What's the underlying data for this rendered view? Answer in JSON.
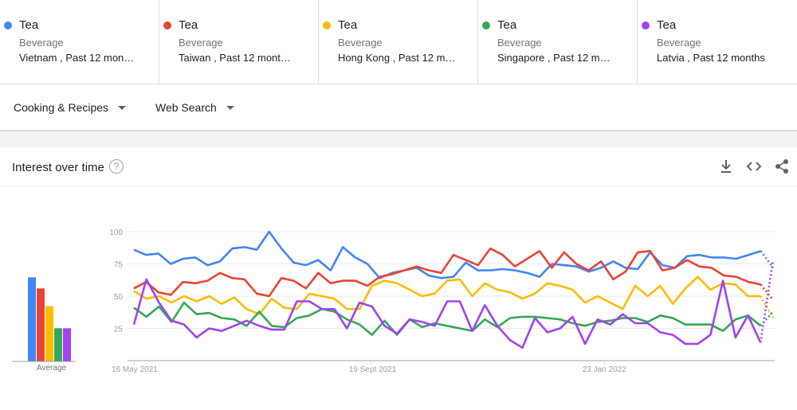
{
  "terms": [
    {
      "name": "Tea",
      "category": "Beverage",
      "meta": "Vietnam , Past 12 mon…",
      "color": "#4285f4"
    },
    {
      "name": "Tea",
      "category": "Beverage",
      "meta": "Taiwan , Past 12 mont…",
      "color": "#ea4335"
    },
    {
      "name": "Tea",
      "category": "Beverage",
      "meta": "Hong Kong , Past 12 m…",
      "color": "#fbbc04"
    },
    {
      "name": "Tea",
      "category": "Beverage",
      "meta": "Singapore , Past 12 m…",
      "color": "#34a853"
    },
    {
      "name": "Tea",
      "category": "Beverage",
      "meta": "Latvia , Past 12 months",
      "color": "#a142f4"
    }
  ],
  "filters": {
    "category": "Cooking & Recipes",
    "search_type": "Web Search"
  },
  "card": {
    "title": "Interest over time",
    "help": "?"
  },
  "icons": {
    "download": "download-icon",
    "embed": "embed-code-icon",
    "share": "share-icon",
    "help": "help-icon",
    "dropdown": "caret-down-icon"
  },
  "chart_data": {
    "type": "line",
    "yticks": [
      100,
      75,
      50,
      25
    ],
    "ylim": [
      0,
      100
    ],
    "xticks": [
      "16 May 2021",
      "19 Sept 2021",
      "23 Jan 2022"
    ],
    "average": {
      "label": "Average",
      "values": [
        76,
        66,
        50,
        30,
        30
      ]
    },
    "series": [
      {
        "name": "Tea",
        "color": "#4285f4",
        "values": [
          86,
          82,
          83,
          75,
          79,
          80,
          74,
          77,
          87,
          88,
          86,
          100,
          87,
          76,
          74,
          78,
          70,
          88,
          80,
          75,
          64,
          68,
          70,
          72,
          66,
          64,
          65,
          76,
          70,
          70,
          71,
          70,
          68,
          65,
          75,
          74,
          73,
          69,
          72,
          77,
          72,
          71,
          84,
          74,
          72,
          81,
          82,
          80,
          80,
          79,
          82,
          85,
          72
        ]
      },
      {
        "name": "Tea",
        "color": "#ea4335",
        "values": [
          56,
          61,
          53,
          51,
          61,
          60,
          62,
          68,
          64,
          63,
          52,
          50,
          64,
          62,
          56,
          68,
          60,
          62,
          62,
          58,
          65,
          67,
          70,
          73,
          70,
          68,
          82,
          78,
          74,
          87,
          82,
          73,
          79,
          85,
          72,
          84,
          75,
          70,
          77,
          63,
          69,
          84,
          85,
          70,
          72,
          78,
          73,
          72,
          66,
          65,
          61,
          59,
          47
        ]
      },
      {
        "name": "Tea",
        "color": "#fbbc04",
        "values": [
          54,
          48,
          50,
          45,
          50,
          46,
          50,
          44,
          49,
          40,
          36,
          48,
          41,
          40,
          52,
          50,
          48,
          40,
          40,
          58,
          62,
          60,
          55,
          50,
          52,
          62,
          63,
          50,
          60,
          55,
          53,
          48,
          52,
          60,
          58,
          55,
          45,
          50,
          45,
          40,
          58,
          50,
          58,
          44,
          56,
          65,
          55,
          60,
          59,
          50,
          50,
          33
        ]
      },
      {
        "name": "Tea",
        "color": "#34a853",
        "values": [
          41,
          34,
          42,
          30,
          45,
          36,
          37,
          33,
          32,
          27,
          38,
          27,
          26,
          33,
          35,
          40,
          38,
          32,
          28,
          20,
          31,
          20,
          32,
          26,
          29,
          27,
          25,
          23,
          32,
          26,
          33,
          34,
          34,
          33,
          32,
          29,
          27,
          30,
          31,
          33,
          33,
          30,
          35,
          33,
          28,
          28,
          28,
          23,
          32,
          35,
          27,
          38
        ]
      },
      {
        "name": "Tea",
        "color": "#a142f4",
        "values": [
          28,
          63,
          45,
          31,
          28,
          18,
          25,
          23,
          27,
          31,
          27,
          24,
          24,
          46,
          46,
          40,
          40,
          25,
          45,
          42,
          27,
          21,
          32,
          30,
          27,
          46,
          46,
          23,
          43,
          27,
          16,
          10,
          33,
          22,
          25,
          34,
          13,
          32,
          28,
          36,
          29,
          29,
          22,
          20,
          13,
          13,
          20,
          62,
          18,
          35,
          14,
          78
        ]
      }
    ]
  }
}
